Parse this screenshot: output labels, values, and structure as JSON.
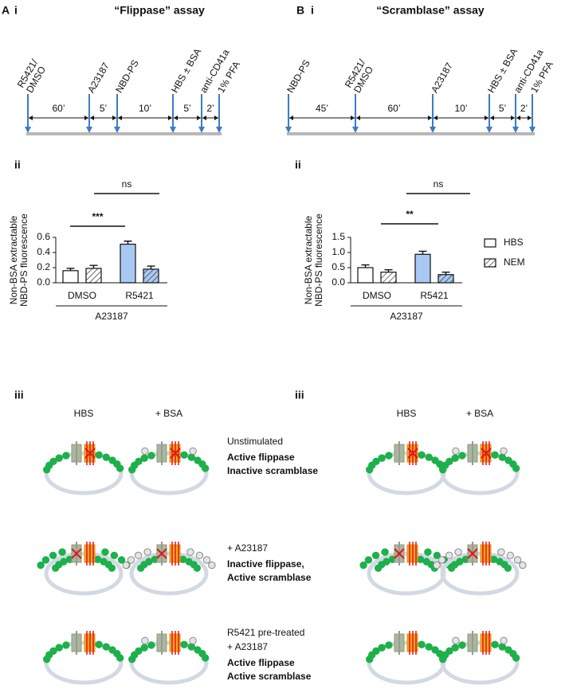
{
  "panels": [
    {
      "letter": "A",
      "sub": "i",
      "title": "“Flippase” assay",
      "timeline": {
        "events": [
          [
            "R5421/",
            "DMSO"
          ],
          [
            "A23187"
          ],
          [
            "NBD-PS"
          ],
          [
            "HBS ± BSA"
          ],
          [
            "anti-CD41a"
          ],
          [
            "1% PFA"
          ]
        ],
        "intervals": [
          "60’",
          "5’",
          "10’",
          "5’",
          "2’"
        ]
      },
      "chart_label": "ii",
      "schematic_label": "iii"
    },
    {
      "letter": "B",
      "sub": "i",
      "title": "“Scramblase” assay",
      "timeline": {
        "events": [
          [
            "NBD-PS"
          ],
          [
            "R5421/",
            "DMSO"
          ],
          [
            "A23187"
          ],
          [
            "HBS ± BSA"
          ],
          [
            "anti-CD41a"
          ],
          [
            "1% PFA"
          ]
        ],
        "intervals": [
          "45’",
          "60’",
          "10’",
          "5’",
          "2’"
        ]
      },
      "chart_label": "ii",
      "schematic_label": "iii"
    }
  ],
  "chart_data": [
    {
      "type": "bar",
      "ylabel": [
        "Non-BSA extractable",
        "NBD-PS fluorescence"
      ],
      "categories": [
        "DMSO",
        "R5421"
      ],
      "group_label": "A23187",
      "category_colors": [
        "#ffffff",
        "#a9c9f2"
      ],
      "series": [
        {
          "name": "HBS",
          "hatch": false,
          "values": [
            0.16,
            0.51
          ],
          "errors": [
            0.03,
            0.04
          ]
        },
        {
          "name": "NEM",
          "hatch": true,
          "values": [
            0.19,
            0.18
          ],
          "errors": [
            0.04,
            0.04
          ]
        }
      ],
      "ylim": [
        0,
        0.6
      ],
      "yticks": [
        {
          "value": 0,
          "label": "0.0"
        },
        0.2,
        0.4,
        0.6
      ],
      "annotations": [
        "***",
        "ns"
      ],
      "legend": false
    },
    {
      "type": "bar",
      "ylabel": [
        "Non-BSA extractable",
        "NBD-PS fluorescence"
      ],
      "categories": [
        "DMSO",
        "R5421"
      ],
      "group_label": "A23187",
      "category_colors": [
        "#ffffff",
        "#a9c9f2"
      ],
      "series": [
        {
          "name": "HBS",
          "hatch": false,
          "values": [
            0.5,
            0.94
          ],
          "errors": [
            0.09,
            0.1
          ]
        },
        {
          "name": "NEM",
          "hatch": true,
          "values": [
            0.35,
            0.27
          ],
          "errors": [
            0.08,
            0.08
          ]
        }
      ],
      "ylim": [
        0,
        1.5
      ],
      "yticks": [
        {
          "value": 0,
          "label": "0.0"
        },
        0.5,
        {
          "value": 1,
          "label": "1.0"
        },
        1.5
      ],
      "annotations": [
        "**",
        "ns"
      ],
      "legend": true
    }
  ],
  "schematic": {
    "columns": [
      "HBS",
      "+ BSA"
    ],
    "rows": [
      {
        "condition": [
          "Unstimulated"
        ],
        "state": [
          "Active flippase",
          "Inactive scramblase"
        ]
      },
      {
        "condition": [
          "+ A23187"
        ],
        "state": [
          "Inactive flippase,",
          "Active scramblase"
        ]
      },
      {
        "condition": [
          "R5421 pre-treated",
          "+ A23187"
        ],
        "state": [
          "Active flippase",
          "Active scramblase"
        ]
      }
    ]
  }
}
